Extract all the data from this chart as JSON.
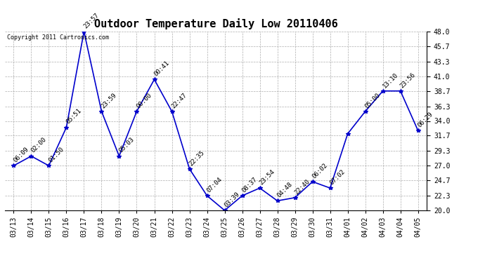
{
  "title": "Outdoor Temperature Daily Low 20110406",
  "copyright": "Copyright 2011 Cartronics.com",
  "x_labels": [
    "03/13",
    "03/14",
    "03/15",
    "03/16",
    "03/17",
    "03/18",
    "03/19",
    "03/20",
    "03/21",
    "03/22",
    "03/23",
    "03/24",
    "03/25",
    "03/26",
    "03/27",
    "03/28",
    "03/29",
    "03/30",
    "03/31",
    "04/01",
    "04/02",
    "04/03",
    "04/04",
    "04/05"
  ],
  "y_values": [
    27.0,
    28.5,
    27.0,
    33.0,
    48.0,
    35.5,
    28.5,
    35.5,
    40.5,
    35.5,
    26.5,
    22.3,
    20.0,
    22.3,
    23.5,
    21.5,
    22.0,
    24.5,
    23.5,
    32.0,
    35.5,
    38.7,
    38.7,
    32.5
  ],
  "annotations": [
    "06:09",
    "02:00",
    "01:50",
    "05:51",
    "23:57",
    "23:59",
    "05:03",
    "00:00",
    "00:41",
    "22:47",
    "22:35",
    "07:04",
    "03:39",
    "08:37",
    "23:54",
    "04:48",
    "22:40",
    "06:02",
    "07:02",
    "",
    "05:00",
    "13:10",
    "23:56",
    "06:29"
  ],
  "ylim": [
    20.0,
    48.0
  ],
  "yticks": [
    20.0,
    22.3,
    24.7,
    27.0,
    29.3,
    31.7,
    34.0,
    36.3,
    38.7,
    41.0,
    43.3,
    45.7,
    48.0
  ],
  "line_color": "#0000cc",
  "marker_color": "#0000cc",
  "bg_color": "#ffffff",
  "grid_color": "#999999",
  "title_fontsize": 11,
  "annot_fontsize": 6.5,
  "copyright_fontsize": 6,
  "tick_fontsize": 7
}
